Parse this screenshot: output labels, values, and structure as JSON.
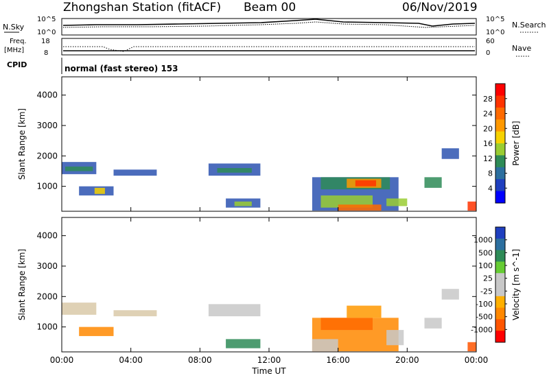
{
  "header": {
    "station": "Zhongshan Station (fitACF)",
    "beam": "Beam 00",
    "date": "06/Nov/2019"
  },
  "noise_panel": {
    "left_label": "N.Sky",
    "left_ticks": [
      "10^5",
      "10^0"
    ],
    "right_ticks": [
      "10^5",
      "10^0"
    ],
    "right_label": "N.Search"
  },
  "freq_panel": {
    "left_label_1": "Freq.",
    "left_label_2": "[MHz]",
    "left_ticks": [
      "18",
      "8"
    ],
    "right_ticks": [
      "60",
      "0"
    ],
    "right_label": "Nave",
    "cpid_label": "CPID"
  },
  "mode_text": "normal (fast stereo) 153",
  "chart_data": [
    {
      "type": "heatmap",
      "panel": "power",
      "ylabel": "Slant Range [km]",
      "yticks": [
        1000,
        2000,
        3000,
        4000
      ],
      "ylim": [
        180,
        4600
      ],
      "xticks": [
        "00:00",
        "04:00",
        "08:00",
        "12:00",
        "16:00",
        "20:00",
        "00:00"
      ],
      "xlim_hours": [
        0,
        24
      ],
      "colorbar_label": "Power [dB]",
      "colorbar_ticks": [
        "28",
        "24",
        "20",
        "16",
        "12",
        "8",
        "4"
      ],
      "colorbar_colors": [
        "#ff0000",
        "#ff3300",
        "#ff6a00",
        "#ff9900",
        "#f6d200",
        "#9acd32",
        "#2e8b57",
        "#2c6f9f",
        "#1f3fbf",
        "#0000ff"
      ],
      "regions": [
        {
          "t": [
            0.0,
            2.0
          ],
          "r": [
            1400,
            1800
          ],
          "color": "#2c52b0"
        },
        {
          "t": [
            0.2,
            1.8
          ],
          "r": [
            1500,
            1650
          ],
          "color": "#2e8b57"
        },
        {
          "t": [
            1.0,
            3.0
          ],
          "r": [
            700,
            1000
          ],
          "color": "#2c52b0"
        },
        {
          "t": [
            1.9,
            2.5
          ],
          "r": [
            750,
            950
          ],
          "color": "#f6d200"
        },
        {
          "t": [
            3.0,
            5.5
          ],
          "r": [
            1350,
            1550
          ],
          "color": "#2c52b0"
        },
        {
          "t": [
            8.5,
            11.5
          ],
          "r": [
            1350,
            1750
          ],
          "color": "#2c52b0"
        },
        {
          "t": [
            9.0,
            11.0
          ],
          "r": [
            1450,
            1600
          ],
          "color": "#2e8b57"
        },
        {
          "t": [
            9.5,
            11.5
          ],
          "r": [
            300,
            600
          ],
          "color": "#2c52b0"
        },
        {
          "t": [
            10.0,
            11.0
          ],
          "r": [
            350,
            500
          ],
          "color": "#9acd32"
        },
        {
          "t": [
            14.5,
            19.5
          ],
          "r": [
            200,
            1300
          ],
          "color": "#2c52b0"
        },
        {
          "t": [
            15.0,
            19.0
          ],
          "r": [
            900,
            1300
          ],
          "color": "#2e8b57"
        },
        {
          "t": [
            15.0,
            18.0
          ],
          "r": [
            300,
            700
          ],
          "color": "#9acd32"
        },
        {
          "t": [
            16.5,
            18.5
          ],
          "r": [
            950,
            1250
          ],
          "color": "#ff9900"
        },
        {
          "t": [
            17.0,
            18.2
          ],
          "r": [
            1000,
            1200
          ],
          "color": "#ff3300"
        },
        {
          "t": [
            16.0,
            18.5
          ],
          "r": [
            200,
            400
          ],
          "color": "#ff6a00"
        },
        {
          "t": [
            18.8,
            20.0
          ],
          "r": [
            350,
            600
          ],
          "color": "#9acd32"
        },
        {
          "t": [
            21.0,
            22.0
          ],
          "r": [
            950,
            1300
          ],
          "color": "#2e8b57"
        },
        {
          "t": [
            22.0,
            23.0
          ],
          "r": [
            1900,
            2250
          ],
          "color": "#2c52b0"
        },
        {
          "t": [
            23.5,
            24.0
          ],
          "r": [
            200,
            500
          ],
          "color": "#ff3300"
        }
      ]
    },
    {
      "type": "heatmap",
      "panel": "velocity",
      "ylabel": "Slant Range [km]",
      "yticks": [
        1000,
        2000,
        3000,
        4000
      ],
      "ylim": [
        180,
        4600
      ],
      "xticks": [
        "00:00",
        "04:00",
        "08:00",
        "12:00",
        "16:00",
        "20:00",
        "00:00"
      ],
      "xlim_hours": [
        0,
        24
      ],
      "xlabel": "Time UT",
      "colorbar_label": "Velocity [m s^-1]",
      "colorbar_ticks": [
        "1000",
        "500",
        "100",
        "25",
        "-25",
        "-100",
        "-500",
        "-1000"
      ],
      "colorbar_colors": [
        "#1f3fbf",
        "#2c6f9f",
        "#2e8b57",
        "#66cc33",
        "#c8c8c8",
        "#c8c8c8",
        "#ffb000",
        "#ff8800",
        "#ff5500",
        "#ff0000"
      ],
      "regions": [
        {
          "t": [
            0.0,
            2.0
          ],
          "r": [
            1400,
            1800
          ],
          "color": "#d9c9a8"
        },
        {
          "t": [
            1.0,
            3.0
          ],
          "r": [
            700,
            1000
          ],
          "color": "#ff8800"
        },
        {
          "t": [
            3.0,
            5.5
          ],
          "r": [
            1350,
            1550
          ],
          "color": "#d9c9a8"
        },
        {
          "t": [
            8.5,
            11.5
          ],
          "r": [
            1350,
            1750
          ],
          "color": "#c8c8c8"
        },
        {
          "t": [
            9.5,
            11.5
          ],
          "r": [
            300,
            600
          ],
          "color": "#2e8b57"
        },
        {
          "t": [
            14.5,
            19.5
          ],
          "r": [
            200,
            1300
          ],
          "color": "#ff8800"
        },
        {
          "t": [
            15.0,
            18.0
          ],
          "r": [
            900,
            1300
          ],
          "color": "#ff6a00"
        },
        {
          "t": [
            16.5,
            18.5
          ],
          "r": [
            1300,
            1700
          ],
          "color": "#ff9900"
        },
        {
          "t": [
            14.5,
            16.0
          ],
          "r": [
            200,
            600
          ],
          "color": "#c8c8c8"
        },
        {
          "t": [
            18.8,
            19.8
          ],
          "r": [
            400,
            900
          ],
          "color": "#c8c8c8"
        },
        {
          "t": [
            21.0,
            22.0
          ],
          "r": [
            950,
            1300
          ],
          "color": "#c8c8c8"
        },
        {
          "t": [
            22.0,
            23.0
          ],
          "r": [
            1900,
            2250
          ],
          "color": "#c8c8c8"
        },
        {
          "t": [
            23.5,
            24.0
          ],
          "r": [
            200,
            500
          ],
          "color": "#ff5500"
        }
      ]
    }
  ]
}
